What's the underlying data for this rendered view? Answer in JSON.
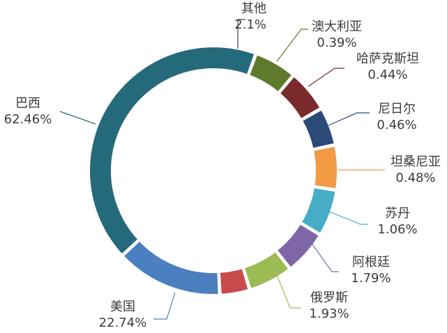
{
  "chart_data": {
    "type": "pie",
    "style": "donut",
    "title": "",
    "slices": [
      {
        "label": "其他",
        "value_label": "2.1%",
        "value": 2.1,
        "color": "#4a3a5e"
      },
      {
        "label": "澳大利亚",
        "value_label": "0.39%",
        "value": 0.39,
        "color": "#5f7a2c"
      },
      {
        "label": "哈萨克斯坦",
        "value_label": "0.44%",
        "value": 0.44,
        "color": "#7a2a2a"
      },
      {
        "label": "尼日尔",
        "value_label": "0.46%",
        "value": 0.46,
        "color": "#2b4a78"
      },
      {
        "label": "坦桑尼亚",
        "value_label": "0.48%",
        "value": 0.48,
        "color": "#f29a44"
      },
      {
        "label": "苏丹",
        "value_label": "1.06%",
        "value": 1.06,
        "color": "#47adc6"
      },
      {
        "label": "阿根廷",
        "value_label": "1.79%",
        "value": 1.79,
        "color": "#7f66a6"
      },
      {
        "label": "俄罗斯",
        "value_label": "1.93%",
        "value": 1.93,
        "color": "#9dbb55"
      },
      {
        "label": "",
        "value_label": "",
        "value": 1.72,
        "color": "#c84b4b"
      },
      {
        "label": "美国",
        "value_label": "22.74%",
        "value": 22.74,
        "color": "#4a7fc0"
      },
      {
        "label": "巴西",
        "value_label": "62.46%",
        "value": 62.46,
        "color": "#256a7a"
      }
    ]
  }
}
